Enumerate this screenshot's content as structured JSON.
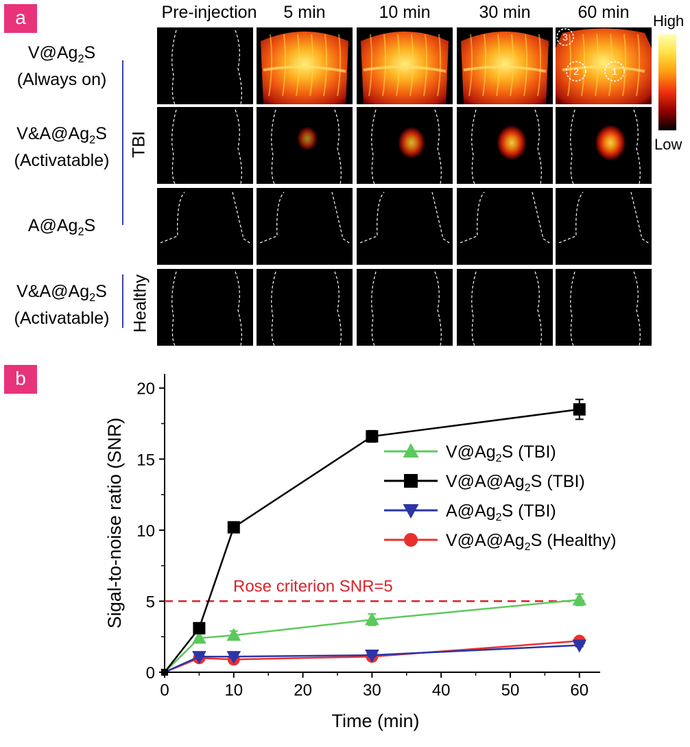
{
  "panel_labels": {
    "a": "a",
    "b": "b"
  },
  "imaging": {
    "columns": [
      "Pre-injection",
      "5 min",
      "10 min",
      "30 min",
      "60 min"
    ],
    "rows": [
      {
        "line1_pre": "V@Ag",
        "sub": "2",
        "line1_post": "S",
        "line2": "(Always on)"
      },
      {
        "line1_pre": "V&A@Ag",
        "sub": "2",
        "line1_post": "S",
        "line2": "(Activatable)"
      },
      {
        "line1_pre": "A@Ag",
        "sub": "2",
        "line1_post": "S",
        "line2": ""
      },
      {
        "line1_pre": "V&A@Ag",
        "sub": "2",
        "line1_post": "S",
        "line2": "(Activatable)"
      }
    ],
    "group_labels": {
      "tbi": "TBI",
      "healthy": "Healthy"
    },
    "colorbar": {
      "high": "High",
      "low": "Low"
    },
    "roi_labels": [
      "1",
      "2",
      "3"
    ],
    "tbi_spot_intensity": [
      0,
      0.35,
      0.7,
      0.85,
      0.9
    ]
  },
  "chart_data": {
    "type": "line",
    "xlabel": "Time (min)",
    "ylabel": "Sigal-to-noise ratio (SNR)",
    "xlim": [
      0,
      63
    ],
    "ylim": [
      0,
      21
    ],
    "xticks": [
      0,
      10,
      20,
      30,
      40,
      50,
      60
    ],
    "yticks": [
      0,
      5,
      10,
      15,
      20
    ],
    "series": [
      {
        "name_pre": "V@Ag",
        "name_sub": "2",
        "name_post": "S (TBI)",
        "color": "#5cc95c",
        "marker": "triangle-up",
        "x": [
          0,
          5,
          10,
          30,
          60
        ],
        "y": [
          0,
          2.4,
          2.6,
          3.7,
          5.1
        ],
        "err": [
          0,
          0.3,
          0.3,
          0.4,
          0.4
        ]
      },
      {
        "name_pre": "V@A@Ag",
        "name_sub": "2",
        "name_post": "S (TBI)",
        "color": "#000000",
        "marker": "square",
        "x": [
          0,
          5,
          10,
          30,
          60
        ],
        "y": [
          0,
          3.1,
          10.2,
          16.6,
          18.5
        ],
        "err": [
          0,
          0.2,
          0.3,
          0.4,
          0.7
        ]
      },
      {
        "name_pre": "A@Ag",
        "name_sub": "2",
        "name_post": "S (TBI)",
        "color": "#2b35a8",
        "marker": "triangle-down",
        "x": [
          0,
          5,
          10,
          30,
          60
        ],
        "y": [
          0,
          1.1,
          1.1,
          1.2,
          1.9
        ],
        "err": [
          0,
          0.1,
          0.1,
          0.1,
          0.1
        ]
      },
      {
        "name_pre": "V@A@Ag",
        "name_sub": "2",
        "name_post": "S (Healthy)",
        "color": "#e8302e",
        "marker": "circle",
        "x": [
          0,
          5,
          10,
          30,
          60
        ],
        "y": [
          0,
          1.0,
          0.9,
          1.1,
          2.2
        ],
        "err": [
          0,
          0.1,
          0.1,
          0.1,
          0.1
        ]
      }
    ],
    "reference_line": {
      "y": 5,
      "label": "Rose criterion  SNR=5",
      "color": "#d8232a"
    },
    "legend_position": "center-right"
  }
}
